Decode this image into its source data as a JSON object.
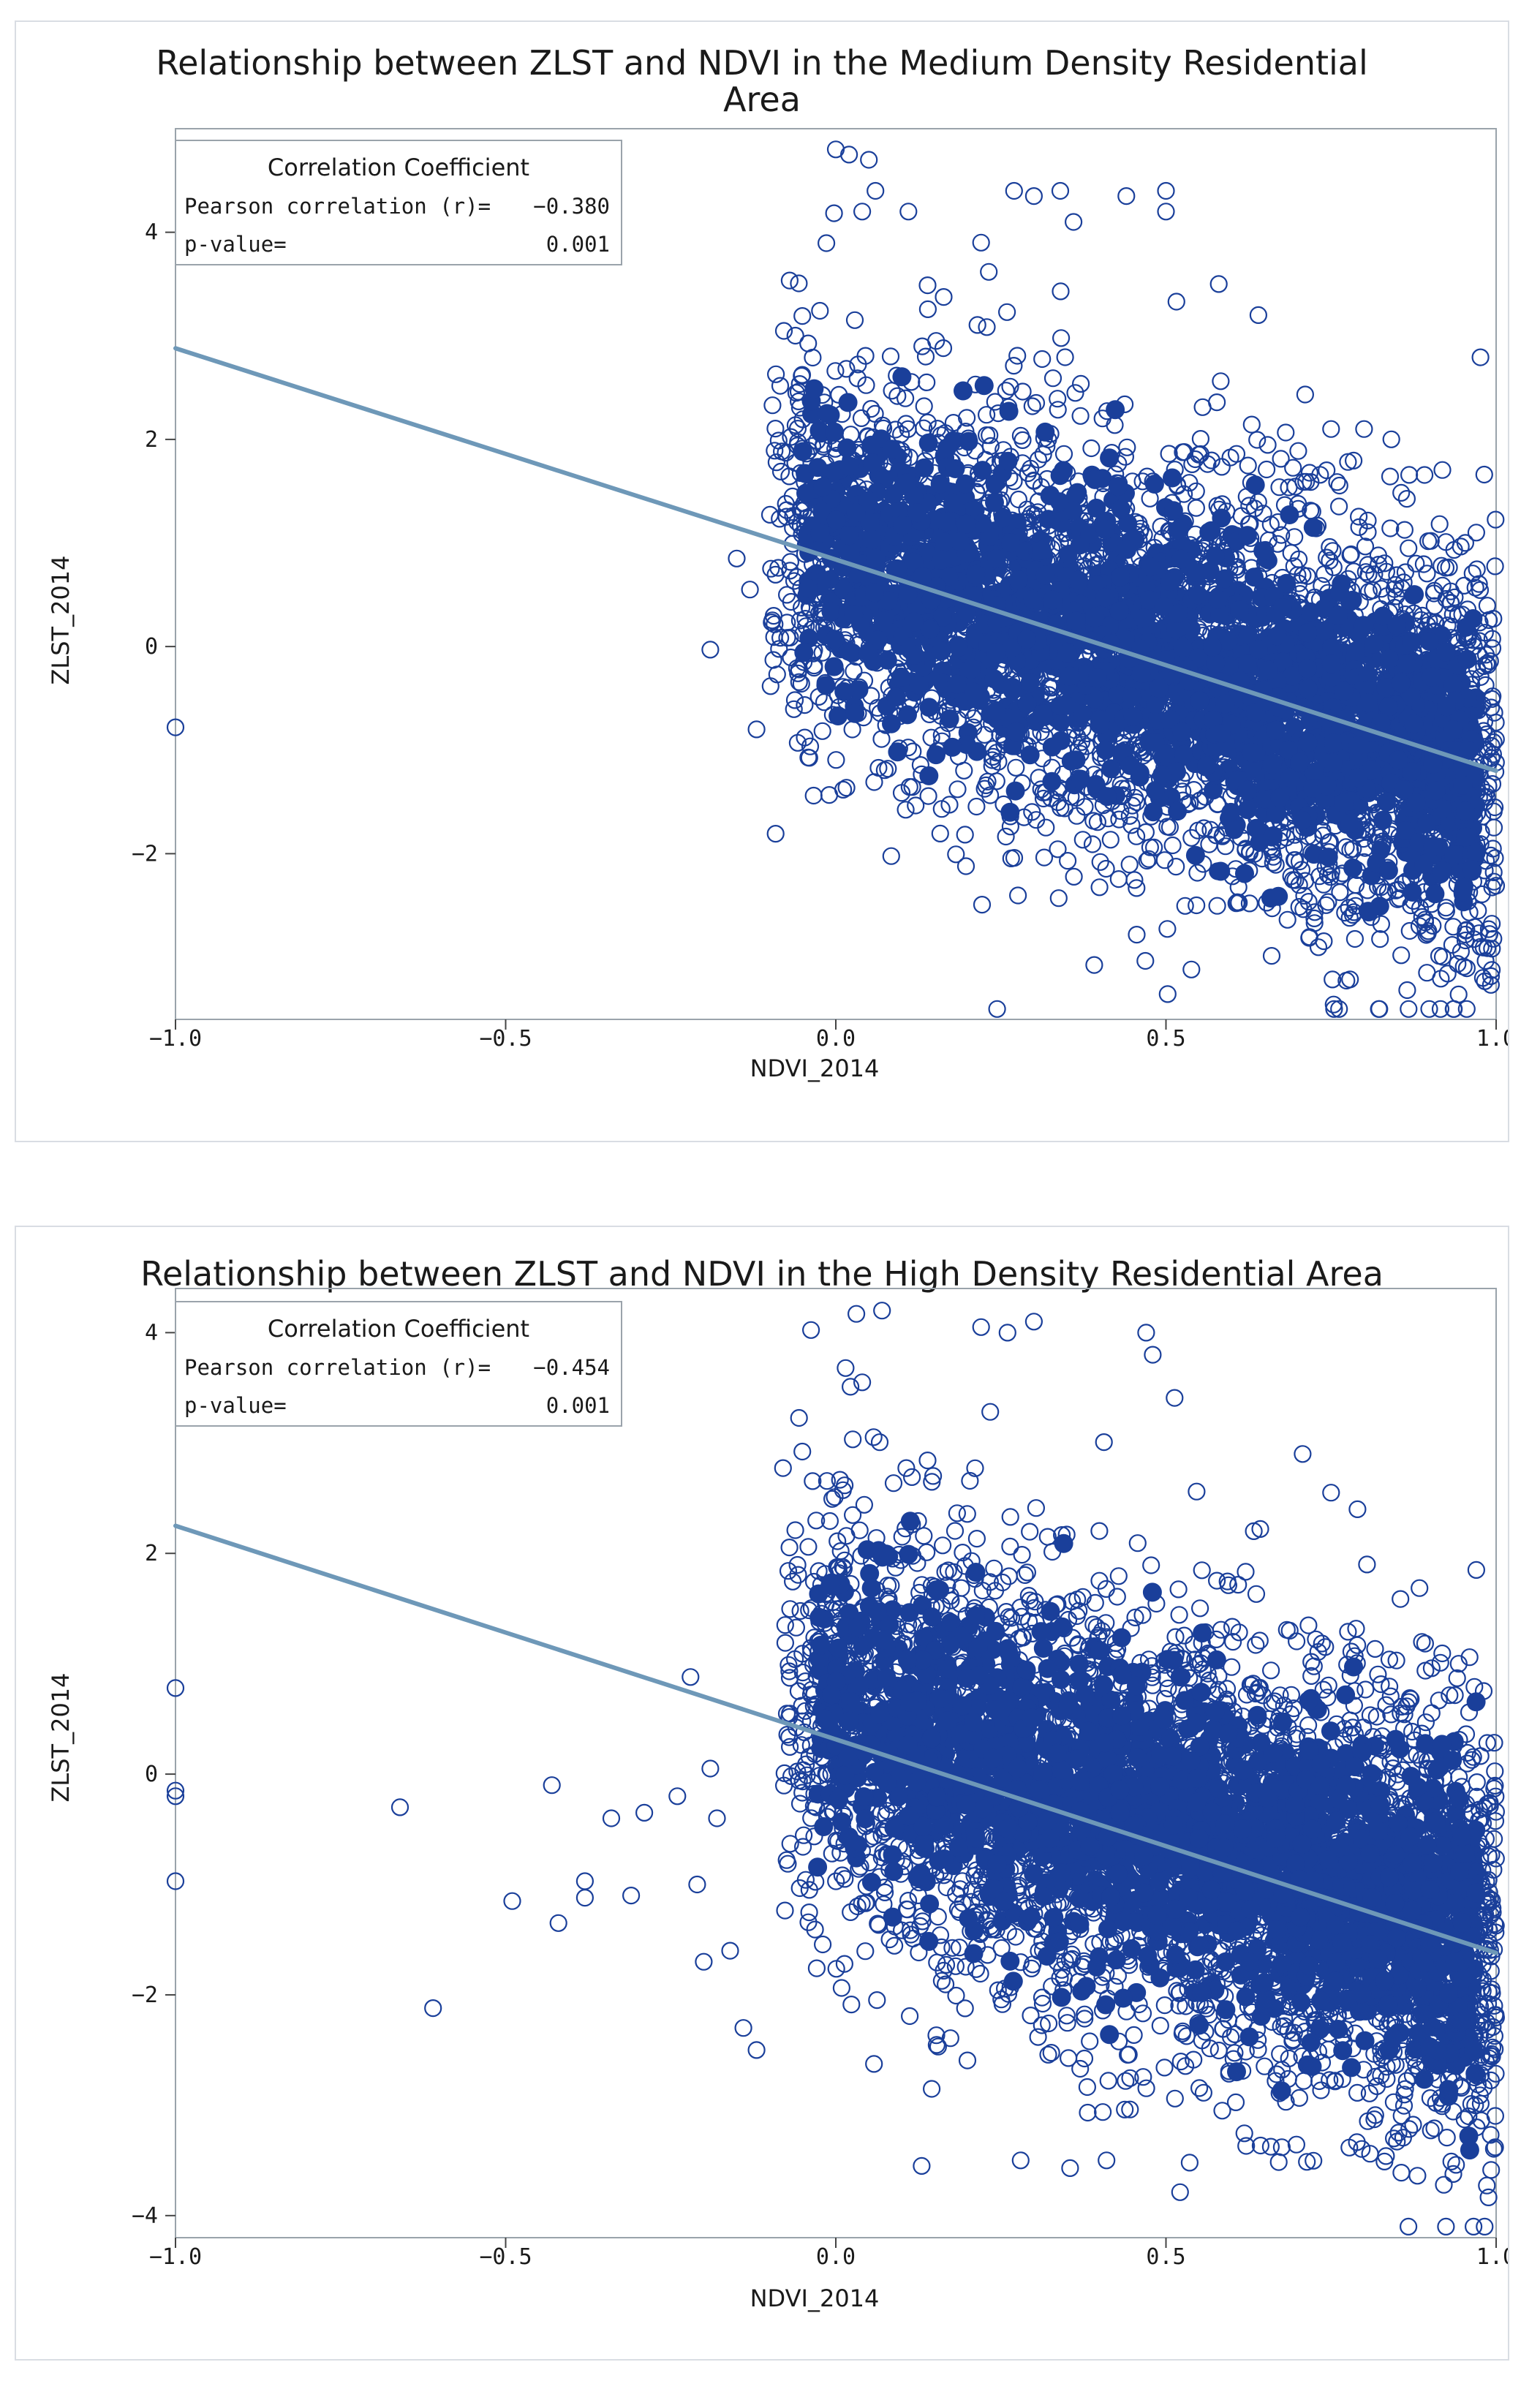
{
  "colors": {
    "marker": "#1a3f9a",
    "regression": "#6e98b8",
    "frame": "#9aa3ab",
    "panel_border": "#d9dde3"
  },
  "chart_data": [
    {
      "type": "scatter",
      "title_lines": [
        "Relationship between ZLST and NDVI in the Medium Density Residential",
        "Area"
      ],
      "xlabel": "NDVI_2014",
      "ylabel": "ZLST_2014",
      "xlim": [
        -1.0,
        1.0
      ],
      "ylim": [
        -3.6,
        5.0
      ],
      "xticks": [
        -1.0,
        -0.5,
        0.0,
        0.5,
        1.0
      ],
      "xtick_labels": [
        "−1.0",
        "−0.5",
        "0.0",
        "0.5",
        "1.0"
      ],
      "yticks": [
        -2,
        0,
        2,
        4
      ],
      "ytick_labels": [
        "−2",
        "0",
        "2",
        "4"
      ],
      "marker": "open-circle",
      "regression_line": {
        "x": [
          -1.0,
          1.0
        ],
        "y": [
          2.88,
          -1.2
        ]
      },
      "legend": {
        "title": "Correlation Coefficient",
        "rows": [
          {
            "label": "Pearson correlation (r)=",
            "value": "−0.380"
          },
          {
            "label": "p-value=",
            "value": "0.001"
          }
        ],
        "position": "top-left"
      },
      "cloud": {
        "count": 3200,
        "x_range": [
          -0.1,
          1.0
        ],
        "center_y_at_x0": 0.9,
        "slope": -2.1,
        "spread": 1.05,
        "seed": 7
      },
      "outliers": [
        [
          -1.0,
          -0.78
        ],
        [
          -0.19,
          -0.03
        ],
        [
          0.0,
          4.8
        ],
        [
          0.02,
          4.75
        ],
        [
          0.05,
          4.7
        ],
        [
          0.06,
          4.4
        ],
        [
          0.04,
          4.2
        ],
        [
          0.11,
          4.2
        ],
        [
          0.27,
          4.4
        ],
        [
          0.3,
          4.35
        ],
        [
          0.34,
          4.4
        ],
        [
          0.44,
          4.35
        ],
        [
          0.5,
          4.4
        ],
        [
          0.58,
          3.5
        ],
        [
          0.64,
          3.2
        ],
        [
          0.8,
          2.1
        ],
        [
          0.75,
          2.1
        ],
        [
          -0.13,
          0.55
        ],
        [
          -0.15,
          0.85
        ],
        [
          -0.12,
          -0.8
        ],
        [
          0.97,
          1.1
        ],
        [
          0.98,
          -3.2
        ],
        [
          0.5,
          4.2
        ],
        [
          0.36,
          4.1
        ],
        [
          0.22,
          3.9
        ]
      ]
    },
    {
      "type": "scatter",
      "title_lines": [
        "Relationship between ZLST and NDVI in the High Density Residential Area"
      ],
      "xlabel": "NDVI_2014",
      "ylabel": "ZLST_2014",
      "xlim": [
        -1.0,
        1.0
      ],
      "ylim": [
        -4.2,
        4.4
      ],
      "xticks": [
        -1.0,
        -0.5,
        0.0,
        0.5,
        1.0
      ],
      "xtick_labels": [
        "−1.0",
        "−0.5",
        "0.0",
        "0.5",
        "1.0"
      ],
      "yticks": [
        -4,
        -2,
        0,
        2,
        4
      ],
      "ytick_labels": [
        "−4",
        "−2",
        "0",
        "2",
        "4"
      ],
      "marker": "open-circle",
      "regression_line": {
        "x": [
          -1.0,
          1.0
        ],
        "y": [
          2.25,
          -1.62
        ]
      },
      "legend": {
        "title": "Correlation Coefficient",
        "rows": [
          {
            "label": "Pearson correlation (r)=",
            "value": "−0.454"
          },
          {
            "label": "p-value=",
            "value": "0.001"
          }
        ],
        "position": "top-left"
      },
      "cloud": {
        "count": 3400,
        "x_range": [
          -0.08,
          1.0
        ],
        "center_y_at_x0": 0.5,
        "slope": -2.0,
        "spread": 1.05,
        "seed": 11
      },
      "outliers": [
        [
          -1.0,
          0.78
        ],
        [
          -1.0,
          -0.15
        ],
        [
          -1.0,
          -0.2
        ],
        [
          -1.0,
          -0.97
        ],
        [
          -0.66,
          -0.3
        ],
        [
          -0.61,
          -2.12
        ],
        [
          -0.49,
          -1.15
        ],
        [
          -0.43,
          -0.1
        ],
        [
          -0.42,
          -1.35
        ],
        [
          -0.38,
          -0.97
        ],
        [
          -0.38,
          -1.12
        ],
        [
          -0.34,
          -0.4
        ],
        [
          -0.31,
          -1.1
        ],
        [
          -0.29,
          -0.35
        ],
        [
          -0.24,
          -0.2
        ],
        [
          -0.22,
          0.88
        ],
        [
          -0.21,
          -1.0
        ],
        [
          -0.2,
          -1.7
        ],
        [
          -0.18,
          -0.4
        ],
        [
          -0.19,
          0.05
        ],
        [
          -0.16,
          -1.6
        ],
        [
          -0.14,
          -2.3
        ],
        [
          -0.12,
          -2.5
        ],
        [
          0.07,
          4.2
        ],
        [
          0.22,
          4.05
        ],
        [
          0.26,
          4.0
        ],
        [
          0.3,
          4.1
        ],
        [
          0.47,
          4.0
        ],
        [
          0.48,
          3.8
        ],
        [
          0.04,
          3.55
        ],
        [
          0.13,
          -3.55
        ],
        [
          0.41,
          -3.5
        ],
        [
          0.28,
          -3.5
        ],
        [
          0.75,
          2.55
        ],
        [
          0.79,
          2.4
        ],
        [
          0.97,
          1.85
        ]
      ]
    }
  ]
}
